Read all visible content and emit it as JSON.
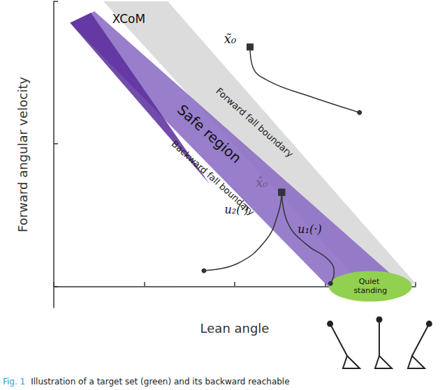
{
  "chart_data": {
    "type": "region_diagram",
    "x_label": "Lean angle",
    "y_label": "Forward angular velocity",
    "xlim": [
      0,
      4
    ],
    "xticks": [
      0,
      1,
      2,
      3,
      4
    ],
    "ylim": [
      -0.15,
      2
    ],
    "yticks": [
      0,
      1,
      2
    ],
    "grid": false,
    "tick_labels": false,
    "regions": [
      {
        "color": "#dcdcdc",
        "points": [
          [
            0.55,
            2.0
          ],
          [
            1.26,
            2.0
          ],
          [
            4.0,
            0.02
          ],
          [
            3.42,
            0
          ]
        ]
      },
      {
        "color": "#8a6cc4",
        "points": [
          [
            0.18,
            1.85
          ],
          [
            0.45,
            1.93
          ],
          [
            3.88,
            0
          ],
          [
            3.03,
            0
          ]
        ]
      },
      {
        "color": "#5a2d9c",
        "points": [
          [
            0.18,
            1.85
          ],
          [
            0.41,
            1.92
          ],
          [
            1.72,
            0.72
          ]
        ]
      }
    ],
    "target_set": {
      "center": [
        3.5,
        0
      ],
      "radii": [
        0.46,
        0.107
      ],
      "color": "#92d050"
    },
    "trajectories": [
      {
        "points": [
          [
            2.17,
            1.68
          ],
          [
            2.2,
            1.54
          ],
          [
            2.38,
            1.44
          ],
          [
            2.8,
            1.34
          ],
          [
            3.38,
            1.22
          ]
        ]
      },
      {
        "points": [
          [
            2.52,
            0.66
          ],
          [
            2.59,
            0.44
          ],
          [
            2.8,
            0.29
          ],
          [
            3.03,
            0.19
          ],
          [
            3.1,
            0.1
          ],
          [
            3.06,
            0.02
          ]
        ]
      },
      {
        "points": [
          [
            2.52,
            0.66
          ],
          [
            2.48,
            0.51
          ],
          [
            2.34,
            0.32
          ],
          [
            2.03,
            0.16
          ],
          [
            1.66,
            0.11
          ]
        ]
      }
    ],
    "annotations": [
      {
        "text": "XCoM",
        "x": 0.83,
        "y": 1.88
      },
      {
        "text": "Safe region",
        "x": 1.72,
        "y": 1.07
      },
      {
        "text": "Forward fall boundary",
        "x": 2.22,
        "y": 1.15
      },
      {
        "text": "Backward fall boundary",
        "x": 1.76,
        "y": 0.76
      },
      {
        "text": "x̃₀",
        "x": 1.95,
        "y": 1.74
      },
      {
        "text": "x̂₀",
        "x": 2.3,
        "y": 0.73
      },
      {
        "text": "u₁(·)",
        "x": 2.83,
        "y": 0.4
      },
      {
        "text": "u₂(·)",
        "x": 2.02,
        "y": 0.54
      },
      {
        "text": "Quiet standing",
        "x": 3.5,
        "y": 0
      }
    ],
    "caption_label": "Fig. 1",
    "caption": "Illustration of a target set (green) and its backward reachable"
  }
}
